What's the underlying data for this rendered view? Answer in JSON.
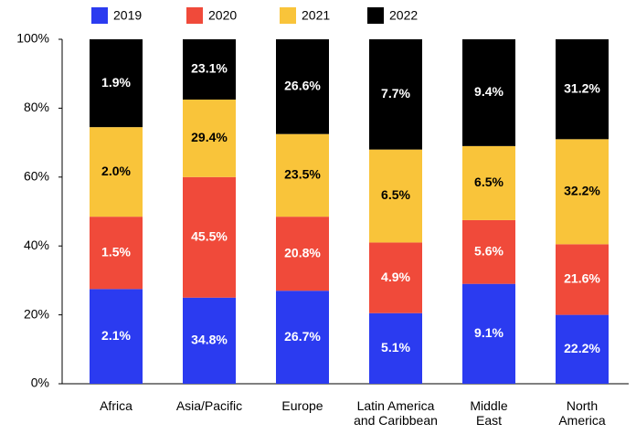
{
  "chart_data": {
    "type": "stacked_bar_100",
    "categories": [
      "Africa",
      "Asia/Pacific",
      "Europe",
      "Latin America\nand Caribbean",
      "Middle\nEast",
      "North\nAmerica"
    ],
    "series": [
      {
        "name": "2019",
        "color": "#2b3bf0",
        "values": [
          27.5,
          25,
          27,
          20.5,
          29,
          20
        ],
        "value_labels": [
          "2.1%",
          "34.8%",
          "26.7%",
          "5.1%",
          "9.1%",
          "22.2%"
        ]
      },
      {
        "name": "2020",
        "color": "#f04a3a",
        "values": [
          21,
          35,
          21.5,
          20.5,
          18.5,
          20.5
        ],
        "value_labels": [
          "1.5%",
          "45.5%",
          "20.8%",
          "4.9%",
          "5.6%",
          "21.6%"
        ]
      },
      {
        "name": "2021",
        "color": "#f9c43a",
        "values": [
          26,
          22.5,
          24,
          27,
          21.5,
          30.5
        ],
        "value_labels": [
          "2.0%",
          "29.4%",
          "23.5%",
          "6.5%",
          "6.5%",
          "32.2%"
        ]
      },
      {
        "name": "2022",
        "color": "#000000",
        "values": [
          25.5,
          17.5,
          27.5,
          32,
          31,
          29
        ],
        "value_labels": [
          "1.9%",
          "23.1%",
          "26.6%",
          "7.7%",
          "9.4%",
          "31.2%"
        ]
      }
    ],
    "ylim": [
      0,
      100
    ],
    "yticks": [
      {
        "value": 0,
        "label": "0%"
      },
      {
        "value": 20,
        "label": "20%"
      },
      {
        "value": 40,
        "label": "40%"
      },
      {
        "value": 60,
        "label": "60%"
      },
      {
        "value": 80,
        "label": "80%"
      },
      {
        "value": 100,
        "label": "100%"
      }
    ],
    "legend": "top"
  }
}
